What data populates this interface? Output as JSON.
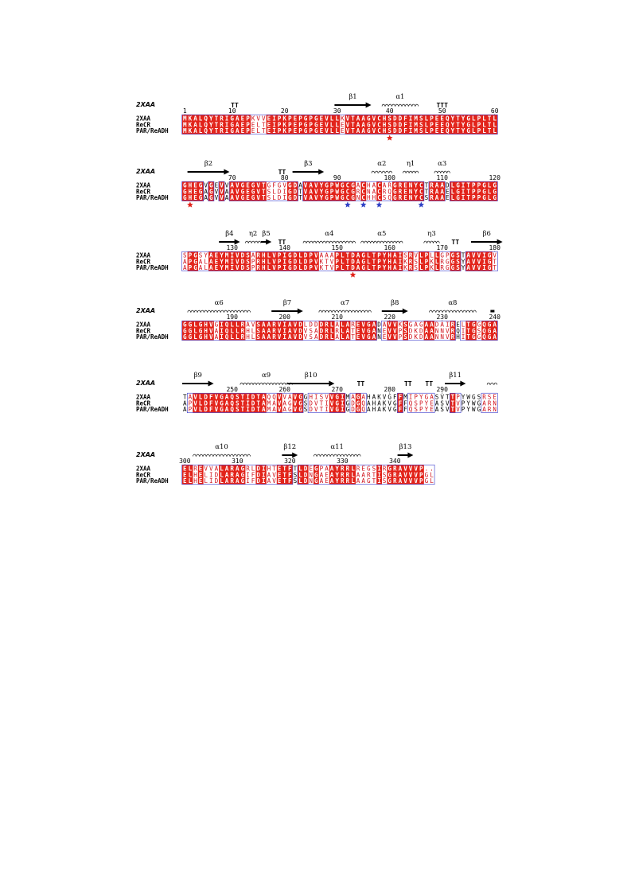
{
  "colors": {
    "identical_bg": "#e2231a",
    "identical_fg": "#ffffff",
    "similar_fg": "#d0101a",
    "box_outline": "#3a3acb",
    "star_red": "#e2231a",
    "star_blue": "#2f42c6"
  },
  "blocks": [
    {
      "header": "2XAA",
      "sequences": [
        {
          "name": "2XAA",
          "residues": "MKALQYTRIGAEPKVVEIPKPEPGPGEVLLKVTAAGVCHSDDFIMSLPEEQYTYGLPLTL"
        },
        {
          "name": "ReCR",
          "residues": "MKALQYTRIGAEPELTEIPKPEPGPGEVLLEVTAAGVCHSDDFIMSLPEEQYTYGLPLTL"
        },
        {
          "name": "PAR/ReADH",
          "residues": "MKALQYTRIGAEPELTEIPKPEPGPGEVLLEVTAAGVCHSDDFIMSLPEEQYTYGLPLTL"
        }
      ],
      "numbering": [
        {
          "label": "1",
          "col": 0
        },
        {
          "label": "10",
          "col": 9
        },
        {
          "label": "20",
          "col": 19
        },
        {
          "label": "30",
          "col": 29
        },
        {
          "label": "40",
          "col": 39
        },
        {
          "label": "50",
          "col": 49
        },
        {
          "label": "60",
          "col": 59
        }
      ],
      "secondary_structure": [
        {
          "type": "turn",
          "label": "TT",
          "start": 9,
          "end": 10
        },
        {
          "type": "strand",
          "label": "β1",
          "start": 29,
          "end": 35
        },
        {
          "type": "helix",
          "label": "α1",
          "start": 38,
          "end": 44
        },
        {
          "type": "turn",
          "label": "TTT",
          "start": 48,
          "end": 50
        }
      ],
      "similar": [
        13,
        14,
        15,
        16,
        30,
        36,
        45,
        46,
        47,
        48,
        49,
        50
      ],
      "markers": [
        {
          "col": 39,
          "color": "red"
        }
      ]
    },
    {
      "header": "2XAA",
      "sequences": [
        {
          "name": "2XAA",
          "residues": "GHEGVGEVVAVGEGVTGFGVGDAVAVYGPWGCGACHACARGRENYCTRAADLGITPPGLG"
        },
        {
          "name": "ReCR",
          "residues": "GHEGAGVVAAVGEGVTSLDIGDTVAVYGPWGCGRCNACRQGRENYCTRAAELGITPPGLG"
        },
        {
          "name": "PAR/ReADH",
          "residues": "GHEGAGVVAAVGEGVTSLDIGDTVAVYGPWGCGNCHHCSQGRENYCSRAAELGITPPGLG"
        }
      ],
      "numbering": [
        {
          "label": "70",
          "col": 9
        },
        {
          "label": "80",
          "col": 19
        },
        {
          "label": "90",
          "col": 29
        },
        {
          "label": "100",
          "col": 39
        },
        {
          "label": "110",
          "col": 49
        },
        {
          "label": "120",
          "col": 59
        }
      ],
      "secondary_structure": [
        {
          "type": "strand",
          "label": "β2",
          "start": 1,
          "end": 8
        },
        {
          "type": "turn",
          "label": "TT",
          "start": 18,
          "end": 19
        },
        {
          "type": "strand",
          "label": "β3",
          "start": 21,
          "end": 26
        },
        {
          "type": "helix",
          "label": "α2",
          "start": 36,
          "end": 39
        },
        {
          "type": "helix",
          "label": "η1",
          "start": 42,
          "end": 44
        },
        {
          "type": "helix",
          "label": "α3",
          "start": 48,
          "end": 50
        }
      ],
      "similar": [
        16,
        17,
        18,
        19,
        33,
        34,
        35,
        36,
        37,
        38,
        39,
        52,
        53
      ],
      "markers": [
        {
          "col": 1,
          "color": "red"
        },
        {
          "col": 31,
          "color": "blue"
        },
        {
          "col": 34,
          "color": "blue"
        },
        {
          "col": 37,
          "color": "blue"
        },
        {
          "col": 45,
          "color": "blue"
        }
      ]
    },
    {
      "header": "",
      "sequences": [
        {
          "name": "2XAA",
          "residues": "SPGSYAEYMIVDSARHLVPIGDLDPVAAAPLTDAGLTPYHAISRVLPLLGPGSTAVVIGV"
        },
        {
          "name": "ReCR",
          "residues": "APGALAEYMIVDSPRHLVPIGDLDPVKTVPLTDAGLTPYHAIKRSLPKLRGGSYAVVIGT"
        },
        {
          "name": "PAR/ReADH",
          "residues": "APGALAEYMIVDSPRHLVPIGDLDPVKTVPLTDAGLTPYHAIKRSLPKLRGGSYAVVIGT"
        }
      ],
      "numbering": [
        {
          "label": "130",
          "col": 9
        },
        {
          "label": "140",
          "col": 19
        },
        {
          "label": "150",
          "col": 29
        },
        {
          "label": "160",
          "col": 39
        },
        {
          "label": "170",
          "col": 49
        },
        {
          "label": "180",
          "col": 59
        }
      ],
      "secondary_structure": [
        {
          "type": "strand",
          "label": "β4",
          "start": 7,
          "end": 10
        },
        {
          "type": "helix",
          "label": "η2",
          "start": 12,
          "end": 14
        },
        {
          "type": "strand",
          "label": "β5",
          "start": 15,
          "end": 16
        },
        {
          "type": "turn",
          "label": "TT",
          "start": 18,
          "end": 19
        },
        {
          "type": "helix",
          "label": "α4",
          "start": 23,
          "end": 32
        },
        {
          "type": "helix",
          "label": "α5",
          "start": 34,
          "end": 41
        },
        {
          "type": "helix",
          "label": "η3",
          "start": 46,
          "end": 48
        },
        {
          "type": "turn",
          "label": "TT",
          "start": 51,
          "end": 52
        },
        {
          "type": "strand",
          "label": "β6",
          "start": 55,
          "end": 60
        }
      ],
      "similar": [
        0,
        1,
        2,
        3,
        4,
        13,
        26,
        27,
        28,
        42,
        43,
        44,
        45,
        47,
        48,
        49,
        50,
        51,
        59
      ],
      "markers": [
        {
          "col": 32,
          "color": "red"
        }
      ]
    },
    {
      "header": "2XAA",
      "sequences": [
        {
          "name": "2XAA",
          "residues": "GGLGHVGIQLLRAVSAARVIAVDLDDDRLALAREVGADAVVKSGAGAADAIRELTGGQGA"
        },
        {
          "name": "ReCR",
          "residues": "GGLGHVAIQLLRHLSAARVIAVDVSADRLRLATEVGANEVVPSDKDAANNVRQITGSQGA"
        },
        {
          "name": "PAR/ReADH",
          "residues": "GGLGHVAIQLLRHLSAARVIAVDVSADRLALATEVGANEVVPSDKDAANNVRHITGGQGA"
        }
      ],
      "numbering": [
        {
          "label": "190",
          "col": 9
        },
        {
          "label": "200",
          "col": 19
        },
        {
          "label": "210",
          "col": 29
        },
        {
          "label": "220",
          "col": 39
        },
        {
          "label": "230",
          "col": 49
        },
        {
          "label": "240",
          "col": 59
        }
      ],
      "secondary_structure": [
        {
          "type": "helix",
          "label": "α6",
          "start": 1,
          "end": 12
        },
        {
          "type": "strand",
          "label": "β7",
          "start": 17,
          "end": 22
        },
        {
          "type": "helix",
          "label": "α7",
          "start": 26,
          "end": 35
        },
        {
          "type": "strand",
          "label": "β8",
          "start": 38,
          "end": 42
        },
        {
          "type": "helix",
          "label": "α8",
          "start": 47,
          "end": 55
        },
        {
          "type": "bar",
          "label": "",
          "start": 59,
          "end": 59
        }
      ],
      "similar": [
        6,
        12,
        13,
        23,
        24,
        25,
        26,
        29,
        30,
        31,
        32,
        38,
        41,
        42,
        43,
        44,
        45,
        46,
        47,
        48,
        49,
        50,
        51,
        53,
        56,
        57
      ],
      "markers": []
    },
    {
      "header": "2XAA",
      "sequences": [
        {
          "name": "2XAA",
          "residues": "TAVLDFVGAQSTIDTAQQVVAVGGHISVVGIMAGAHAKVGFFMIPYGASVTTPYWGSRSE"
        },
        {
          "name": "ReCR",
          "residues": "APVLDFVGAQSTIDTAMAVAGVGSDVTIVGIGDGQAHAKVGFFQSPYEASVTVPYWGARN"
        },
        {
          "name": "PAR/ReADH",
          "residues": "APVLDFVGAQSTIDTAMAVAGVGSDVTIVGIGDGQAHAKVGFFQSPYEASVTVPYWGARN"
        }
      ],
      "numbering": [
        {
          "label": "250",
          "col": 9
        },
        {
          "label": "260",
          "col": 19
        },
        {
          "label": "270",
          "col": 29
        },
        {
          "label": "280",
          "col": 39
        },
        {
          "label": "290",
          "col": 49
        }
      ],
      "secondary_structure": [
        {
          "type": "strand",
          "label": "β9",
          "start": 0,
          "end": 5
        },
        {
          "type": "helix",
          "label": "α9",
          "start": 11,
          "end": 20
        },
        {
          "type": "strand",
          "label": "β10",
          "start": 20,
          "end": 28
        },
        {
          "type": "turn",
          "label": "TT",
          "start": 33,
          "end": 34
        },
        {
          "type": "turn",
          "label": "TT",
          "start": 42,
          "end": 43
        },
        {
          "type": "turn",
          "label": "TT",
          "start": 46,
          "end": 47
        },
        {
          "type": "strand",
          "label": "β11",
          "start": 50,
          "end": 53
        },
        {
          "type": "helix",
          "label": "",
          "start": 58,
          "end": 59
        }
      ],
      "similar": [
        1,
        2,
        16,
        17,
        18,
        19,
        20,
        24,
        25,
        26,
        27,
        28,
        32,
        33,
        34,
        43,
        44,
        45,
        46,
        47,
        52,
        57,
        58,
        59
      ],
      "markers": []
    },
    {
      "header": "2XAA",
      "sequences": [
        {
          "name": "2XAA",
          "residues": "ELREVVALARAGRLDIHTETFTLDEGPAAYRRLREGSIRGRAVVVP.."
        },
        {
          "name": "ReCR",
          "residues": "ELHELIDLARAGIFDIAVETFSLDNGAEAYRRLAARTISGRAVVVPGL"
        },
        {
          "name": "PAR/ReADH",
          "residues": "ELHELIDLARAGIFDIAVETFSLDNGAEAYRRLAAGTISGRAVVVPGL"
        }
      ],
      "numbering": [
        {
          "label": "300",
          "col": 0
        },
        {
          "label": "310",
          "col": 10
        },
        {
          "label": "320",
          "col": 20
        },
        {
          "label": "330",
          "col": 30
        },
        {
          "label": "340",
          "col": 40
        }
      ],
      "secondary_structure": [
        {
          "type": "helix",
          "label": "α10",
          "start": 2,
          "end": 12
        },
        {
          "type": "strand",
          "label": "β12",
          "start": 19,
          "end": 21
        },
        {
          "type": "helix",
          "label": "α11",
          "start": 25,
          "end": 33
        },
        {
          "type": "strand",
          "label": "β13",
          "start": 41,
          "end": 43
        }
      ],
      "similar": [
        2,
        3,
        4,
        5,
        6,
        7,
        8,
        12,
        13,
        14,
        15,
        16,
        17,
        18,
        23,
        24,
        25,
        26,
        27,
        33,
        34,
        35,
        36,
        37,
        38,
        39,
        46,
        47
      ],
      "markers": []
    }
  ]
}
